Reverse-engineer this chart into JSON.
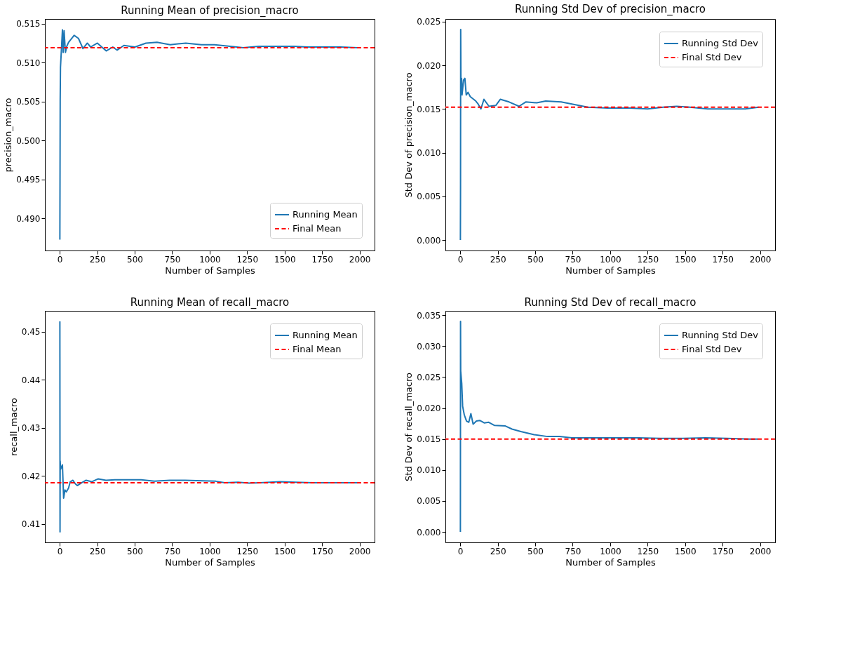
{
  "chart_data": [
    {
      "type": "line",
      "title": "Running Mean of precision_macro",
      "xlabel": "Number of Samples",
      "ylabel": "precision_macro",
      "legend": "bottom right",
      "grid": false,
      "line_style": "solid",
      "xlim": [
        -99,
        2100
      ],
      "xticks": [
        0,
        250,
        500,
        750,
        1000,
        1250,
        1500,
        1750,
        2000
      ],
      "ylim": [
        0.4859,
        0.5156
      ],
      "yticks": [
        {
          "value": 0.49,
          "label": "0.490"
        },
        0.495,
        {
          "value": 0.5,
          "label": "0.500"
        },
        0.505,
        {
          "value": 0.51,
          "label": "0.510"
        },
        0.515
      ],
      "series": [
        {
          "name": "Running Mean",
          "color": "#1f77b4",
          "x": [
            1,
            2,
            3,
            5,
            18,
            23,
            29,
            38,
            47,
            59,
            96,
            125,
            155,
            184,
            206,
            251,
            310,
            354,
            383,
            428,
            502,
            575,
            649,
            737,
            841,
            944,
            1032,
            1136,
            1224,
            1327,
            1430,
            1563,
            1652,
            1799,
            1873,
            1991
          ],
          "values": [
            0.4873,
            0.4961,
            0.5051,
            0.5094,
            0.5142,
            0.5113,
            0.5141,
            0.5113,
            0.5121,
            0.5126,
            0.5135,
            0.5131,
            0.5118,
            0.5125,
            0.512,
            0.5125,
            0.5115,
            0.512,
            0.5116,
            0.5122,
            0.512,
            0.5125,
            0.5126,
            0.5123,
            0.5125,
            0.5123,
            0.5123,
            0.5121,
            0.5119,
            0.5121,
            0.5121,
            0.5121,
            0.512,
            0.512,
            0.512,
            0.5119
          ]
        }
      ],
      "ref_lines": [
        {
          "axis": "y",
          "value": 0.5119,
          "label": "Final Mean",
          "color": "#ff0000",
          "line_style": "dashed"
        }
      ]
    },
    {
      "type": "line",
      "title": "Running Std Dev of precision_macro",
      "xlabel": "Number of Samples",
      "ylabel": "Std Dev of precision_macro",
      "legend": "top right",
      "grid": false,
      "line_style": "solid",
      "xlim": [
        -99,
        2100
      ],
      "xticks": [
        0,
        250,
        500,
        750,
        1000,
        1250,
        1500,
        1750,
        2000
      ],
      "ylim": [
        -0.0012,
        0.0253
      ],
      "yticks": [
        {
          "value": 0,
          "label": "0.000"
        },
        0.005,
        {
          "value": 0.01,
          "label": "0.010"
        },
        0.015,
        {
          "value": 0.02,
          "label": "0.020"
        },
        0.025
      ],
      "series": [
        {
          "name": "Running Std Dev",
          "color": "#1f77b4",
          "x": [
            1,
            2,
            3,
            5,
            9,
            12,
            22,
            31,
            40,
            52,
            67,
            104,
            118,
            138,
            158,
            192,
            237,
            267,
            326,
            392,
            437,
            510,
            570,
            673,
            762,
            851,
            984,
            1132,
            1250,
            1354,
            1443,
            1531,
            1650,
            1798,
            1902,
            1990
          ],
          "values": [
            0,
            0.0064,
            0.0241,
            0.0169,
            0.0185,
            0.0166,
            0.0183,
            0.0185,
            0.0166,
            0.0169,
            0.0164,
            0.0159,
            0.0156,
            0.015,
            0.0161,
            0.0153,
            0.0154,
            0.0161,
            0.0158,
            0.0153,
            0.0158,
            0.0157,
            0.0159,
            0.0158,
            0.0155,
            0.0152,
            0.0151,
            0.0151,
            0.015,
            0.0152,
            0.0153,
            0.0152,
            0.015,
            0.015,
            0.015,
            0.0152
          ]
        }
      ],
      "ref_lines": [
        {
          "axis": "y",
          "value": 0.0152,
          "label": "Final Std Dev",
          "color": "#ff0000",
          "line_style": "dashed"
        }
      ]
    },
    {
      "type": "line",
      "title": "Running Mean of recall_macro",
      "xlabel": "Number of Samples",
      "ylabel": "recall_macro",
      "legend": "top right",
      "grid": false,
      "line_style": "solid",
      "xlim": [
        -99,
        2100
      ],
      "xticks": [
        0,
        250,
        500,
        750,
        1000,
        1250,
        1500,
        1750,
        2000
      ],
      "ylim": [
        0.4062,
        0.4543
      ],
      "yticks": [
        0.41,
        0.42,
        0.43,
        0.44,
        0.45
      ],
      "series": [
        {
          "name": "Running Mean",
          "color": "#1f77b4",
          "x": [
            1,
            2,
            3,
            6,
            18,
            26,
            35,
            44,
            59,
            70,
            88,
            103,
            117,
            147,
            176,
            213,
            257,
            308,
            367,
            455,
            543,
            631,
            734,
            837,
            954,
            1042,
            1101,
            1189,
            1263,
            1336,
            1468,
            1571,
            1689,
            1835,
            1997
          ],
          "values": [
            0.4521,
            0.4084,
            0.4231,
            0.4214,
            0.4223,
            0.4154,
            0.4171,
            0.4167,
            0.4175,
            0.4188,
            0.4191,
            0.4184,
            0.418,
            0.4186,
            0.4191,
            0.4188,
            0.4194,
            0.4191,
            0.4192,
            0.4192,
            0.4192,
            0.4189,
            0.4191,
            0.4191,
            0.419,
            0.4189,
            0.4186,
            0.4187,
            0.4185,
            0.4186,
            0.4188,
            0.4187,
            0.4186,
            0.4186,
            0.4186
          ]
        }
      ],
      "ref_lines": [
        {
          "axis": "y",
          "value": 0.4186,
          "label": "Final Mean",
          "color": "#ff0000",
          "line_style": "dashed"
        }
      ]
    },
    {
      "type": "line",
      "title": "Running Std Dev of recall_macro",
      "xlabel": "Number of Samples",
      "ylabel": "Std Dev of recall_macro",
      "legend": "top right",
      "grid": false,
      "line_style": "solid",
      "xlim": [
        -99,
        2100
      ],
      "xticks": [
        0,
        250,
        500,
        750,
        1000,
        1250,
        1500,
        1750,
        2000
      ],
      "ylim": [
        -0.0017,
        0.0357
      ],
      "yticks": [
        {
          "value": 0,
          "label": "0.000"
        },
        0.005,
        {
          "value": 0.01,
          "label": "0.010"
        },
        0.015,
        {
          "value": 0.02,
          "label": "0.020"
        },
        0.025,
        {
          "value": 0.03,
          "label": "0.030"
        },
        0.035
      ],
      "series": [
        {
          "name": "Running Std Dev",
          "color": "#1f77b4",
          "x": [
            1,
            2,
            3,
            10,
            16,
            27,
            42,
            57,
            71,
            86,
            108,
            130,
            160,
            190,
            227,
            301,
            345,
            404,
            493,
            582,
            663,
            744,
            892,
            1040,
            1188,
            1336,
            1484,
            1632,
            1780,
            1928,
            1987
          ],
          "values": [
            0,
            0.034,
            0.026,
            0.024,
            0.0203,
            0.0189,
            0.0179,
            0.0177,
            0.0191,
            0.0174,
            0.0179,
            0.018,
            0.0176,
            0.0177,
            0.0172,
            0.0171,
            0.0166,
            0.0162,
            0.0157,
            0.0154,
            0.0154,
            0.0152,
            0.0152,
            0.0152,
            0.0152,
            0.0151,
            0.0151,
            0.0152,
            0.0151,
            0.015,
            0.015
          ]
        }
      ],
      "ref_lines": [
        {
          "axis": "y",
          "value": 0.015,
          "label": "Final Std Dev",
          "color": "#ff0000",
          "line_style": "dashed"
        }
      ]
    }
  ]
}
